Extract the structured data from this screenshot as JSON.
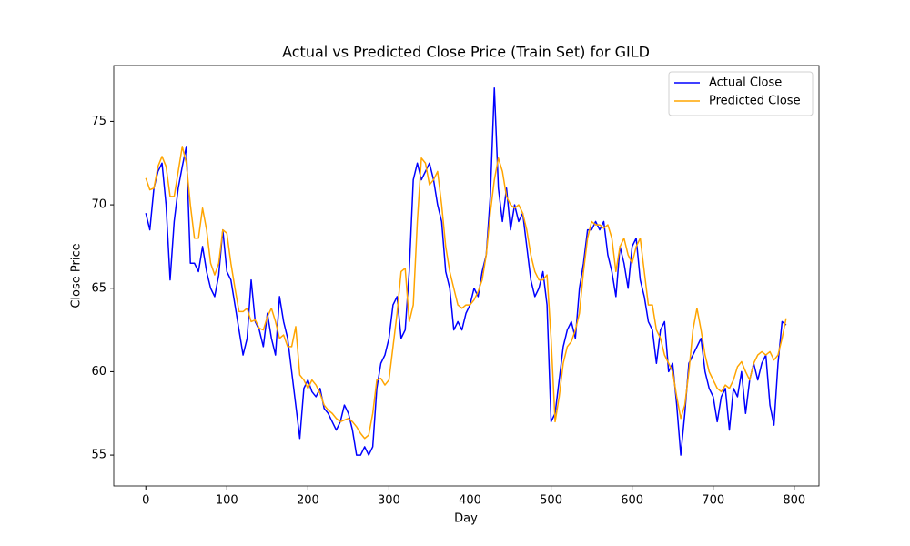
{
  "chart_data": {
    "type": "line",
    "title": "Actual vs Predicted Close Price (Train Set) for GILD",
    "x_label": "Day",
    "y_label": "Close Price",
    "x": [
      0,
      5,
      10,
      15,
      20,
      25,
      30,
      35,
      40,
      45,
      50,
      55,
      60,
      65,
      70,
      75,
      80,
      85,
      90,
      95,
      100,
      105,
      110,
      115,
      120,
      125,
      130,
      135,
      140,
      145,
      150,
      155,
      160,
      165,
      170,
      175,
      180,
      185,
      190,
      195,
      200,
      205,
      210,
      215,
      220,
      225,
      230,
      235,
      240,
      245,
      250,
      255,
      260,
      265,
      270,
      275,
      280,
      285,
      290,
      295,
      300,
      305,
      310,
      315,
      320,
      325,
      330,
      335,
      340,
      345,
      350,
      355,
      360,
      365,
      370,
      375,
      380,
      385,
      390,
      395,
      400,
      405,
      410,
      415,
      420,
      425,
      430,
      435,
      440,
      445,
      450,
      455,
      460,
      465,
      470,
      475,
      480,
      485,
      490,
      495,
      500,
      505,
      510,
      515,
      520,
      525,
      530,
      535,
      540,
      545,
      550,
      555,
      560,
      565,
      570,
      575,
      580,
      585,
      590,
      595,
      600,
      605,
      610,
      615,
      620,
      625,
      630,
      635,
      640,
      645,
      650,
      655,
      660,
      665,
      670,
      675,
      680,
      685,
      690,
      695,
      700,
      705,
      710,
      715,
      720,
      725,
      730,
      735,
      740,
      745,
      750,
      755,
      760,
      765,
      770,
      775,
      780,
      785,
      790
    ],
    "series": [
      {
        "name": "Actual Close",
        "color": "#0000ff",
        "values": [
          69.5,
          68.5,
          71,
          72,
          72.5,
          70,
          65.5,
          69,
          71,
          72.3,
          73.5,
          66.5,
          66.5,
          66,
          67.5,
          66,
          65,
          64.5,
          65.8,
          68.5,
          66,
          65.5,
          64,
          62.5,
          61,
          62,
          65.5,
          63,
          62.5,
          61.5,
          63.5,
          62,
          61,
          64.5,
          63,
          62,
          60,
          58,
          56,
          59,
          59.5,
          58.8,
          58.5,
          59,
          57.8,
          57.5,
          57,
          56.5,
          57,
          58,
          57.5,
          56.5,
          55,
          55,
          55.5,
          55,
          55.5,
          59,
          60.5,
          61,
          62,
          64,
          64.5,
          62,
          62.5,
          66,
          71.5,
          72.5,
          71.5,
          72,
          72.5,
          71.5,
          70,
          69,
          66,
          65,
          62.5,
          63,
          62.5,
          63.5,
          64,
          65,
          64.5,
          66,
          67,
          70.5,
          77,
          71,
          69,
          71,
          68.5,
          70,
          69,
          69.5,
          67.5,
          65.5,
          64.5,
          65,
          66,
          64,
          57,
          57.5,
          59.5,
          61.5,
          62.5,
          63,
          62,
          65,
          66.5,
          68.5,
          68.5,
          69,
          68.5,
          69,
          67,
          66,
          64.5,
          67.5,
          66.5,
          65,
          67.5,
          68,
          65.5,
          64.5,
          63,
          62.5,
          60.5,
          62.5,
          63,
          60,
          60.5,
          58,
          55,
          57.5,
          60.5,
          61,
          61.5,
          62,
          60,
          59,
          58.5,
          57,
          58.5,
          59,
          56.5,
          59,
          58.5,
          60,
          57.5,
          59.5,
          60.5,
          59.5,
          60.5,
          61,
          58,
          56.8,
          60.5,
          63,
          62.8
        ]
      },
      {
        "name": "Predicted Close",
        "color": "#ffa500",
        "values": [
          71.6,
          70.9,
          71,
          72.3,
          72.9,
          72.3,
          70.5,
          70.5,
          72,
          73.5,
          72.5,
          70,
          68,
          68,
          69.8,
          68.5,
          66.5,
          65.8,
          66.5,
          68.5,
          68.3,
          66.5,
          65,
          63.6,
          63.6,
          63.8,
          63,
          63.1,
          62.6,
          62.5,
          63.3,
          63.8,
          63,
          62,
          62.2,
          61.5,
          61.5,
          62.7,
          59.8,
          59.5,
          59,
          59.5,
          59.2,
          58.7,
          58,
          57.7,
          57.5,
          57.2,
          57,
          57.1,
          57.2,
          57,
          56.7,
          56.3,
          56,
          56.2,
          57.5,
          59.5,
          59.6,
          59.2,
          59.5,
          61.5,
          63.5,
          66,
          66.2,
          63,
          64,
          69,
          72.8,
          72.5,
          71.2,
          71.5,
          72,
          70,
          67.5,
          66,
          65,
          64,
          63.8,
          64,
          64,
          64.3,
          64.8,
          65.5,
          67,
          69.5,
          71.5,
          72.8,
          72,
          70.5,
          70,
          69.8,
          70,
          69.5,
          68.5,
          67,
          66,
          65.5,
          65.5,
          65.8,
          62,
          57,
          58.5,
          60.5,
          61.5,
          61.8,
          62.5,
          63.5,
          66,
          68,
          69,
          68.8,
          68.8,
          68.6,
          68.8,
          68,
          66,
          67.5,
          68,
          67,
          66.5,
          67.5,
          68,
          66,
          64,
          64,
          62.5,
          62,
          61,
          60.5,
          60,
          58.5,
          57.2,
          58,
          60,
          62.5,
          63.8,
          62.5,
          61,
          60,
          59.5,
          59,
          58.8,
          59.2,
          59,
          59.5,
          60.3,
          60.6,
          60,
          59.5,
          60.5,
          61,
          61.2,
          61,
          61.2,
          60.7,
          61,
          62,
          63.2
        ]
      }
    ],
    "xlim": [
      -39.55,
      830.55
    ],
    "ylim": [
      53.15,
      78.35
    ],
    "xticks": [
      0,
      100,
      200,
      300,
      400,
      500,
      600,
      700,
      800
    ],
    "yticks": [
      55,
      60,
      65,
      70,
      75
    ],
    "legend": "upper right"
  }
}
